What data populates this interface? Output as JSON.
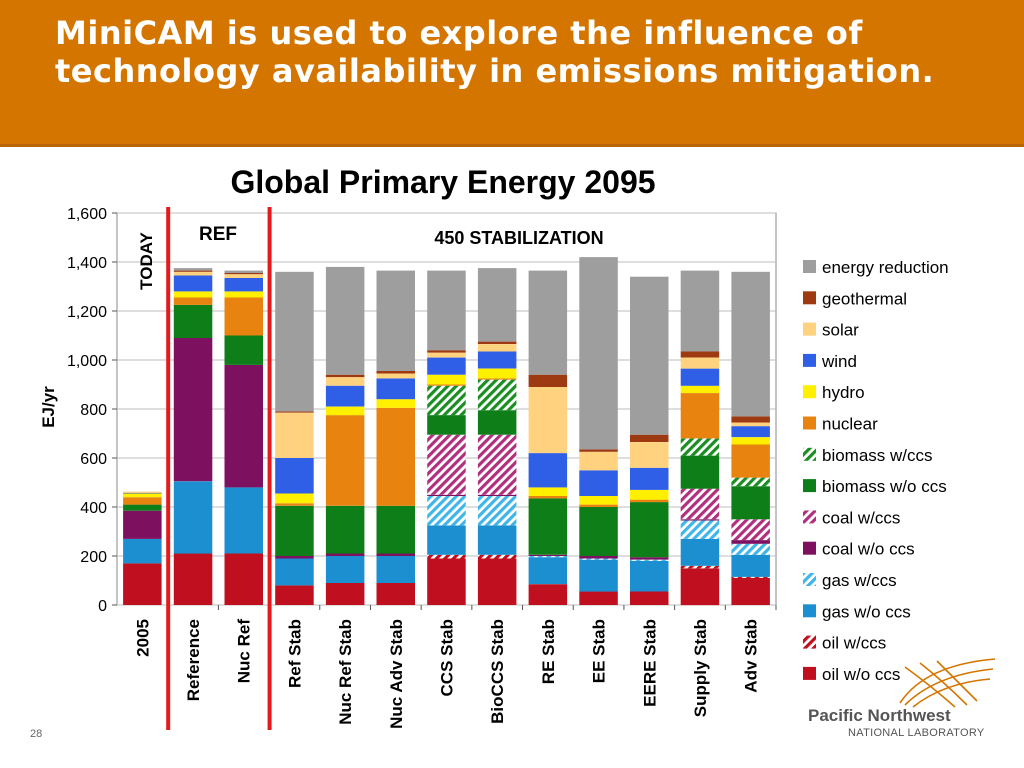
{
  "slide": {
    "title": "MiniCAM is used to explore the influence of technology availability in emissions mitigation.",
    "page_number": "28"
  },
  "logo": {
    "line1": "Pacific Northwest",
    "line2": "NATIONAL LABORATORY"
  },
  "colors": {
    "header_bg": "#D47500",
    "divider": "#E41A1C"
  },
  "chart_data": {
    "type": "bar",
    "stacked": true,
    "title": "Global Primary Energy 2095",
    "ylabel": "EJ/yr",
    "ylim": [
      0,
      1600
    ],
    "yticks": [
      0,
      200,
      400,
      600,
      800,
      1000,
      1200,
      1400,
      1600
    ],
    "ytick_labels": [
      "0",
      "200",
      "400",
      "600",
      "800",
      "1,000",
      "1,200",
      "1,400",
      "1,600"
    ],
    "grid": true,
    "legend_position": "right",
    "annotations": {
      "today": "TODAY",
      "ref": "REF",
      "stab": "450 STABILIZATION"
    },
    "categories": [
      "2005",
      "Reference",
      "Nuc Ref",
      "Ref Stab",
      "Nuc Ref Stab",
      "Nuc Adv Stab",
      "CCS Stab",
      "BioCCS Stab",
      "RE Stab",
      "EE Stab",
      "EERE Stab",
      "Supply Stab",
      "Adv Stab"
    ],
    "series": [
      {
        "name": "oil w/o ccs",
        "color": "#C0101F",
        "pattern": "solid",
        "values": [
          170,
          210,
          210,
          80,
          90,
          90,
          190,
          190,
          85,
          55,
          55,
          150,
          110
        ]
      },
      {
        "name": "oil w/ccs",
        "color": "#C0101F",
        "pattern": "hatch",
        "values": [
          0,
          0,
          0,
          0,
          0,
          0,
          15,
          15,
          0,
          0,
          0,
          10,
          5
        ]
      },
      {
        "name": "gas w/o ccs",
        "color": "#1C8FD0",
        "pattern": "solid",
        "values": [
          100,
          295,
          270,
          110,
          110,
          110,
          120,
          120,
          110,
          130,
          125,
          110,
          90
        ]
      },
      {
        "name": "gas w/ccs",
        "color": "#3FB5E8",
        "pattern": "hatch",
        "values": [
          0,
          0,
          0,
          0,
          0,
          0,
          120,
          120,
          5,
          5,
          5,
          75,
          45
        ]
      },
      {
        "name": "coal w/o ccs",
        "color": "#7E1060",
        "pattern": "solid",
        "values": [
          115,
          585,
          500,
          10,
          10,
          10,
          5,
          5,
          5,
          10,
          10,
          5,
          15
        ]
      },
      {
        "name": "coal w/ccs",
        "color": "#B0307E",
        "pattern": "hatch",
        "values": [
          0,
          0,
          0,
          0,
          0,
          0,
          245,
          245,
          0,
          0,
          0,
          125,
          85
        ]
      },
      {
        "name": "biomass w/o ccs",
        "color": "#0E7E18",
        "pattern": "solid",
        "values": [
          25,
          135,
          120,
          205,
          195,
          195,
          80,
          100,
          230,
          200,
          225,
          135,
          135
        ]
      },
      {
        "name": "biomass w/ccs",
        "color": "#1A8E22",
        "pattern": "hatch",
        "values": [
          0,
          0,
          0,
          0,
          0,
          0,
          120,
          125,
          0,
          0,
          0,
          70,
          35
        ]
      },
      {
        "name": "nuclear",
        "color": "#E8830F",
        "pattern": "solid",
        "values": [
          30,
          30,
          155,
          10,
          370,
          400,
          5,
          5,
          10,
          10,
          10,
          185,
          135
        ]
      },
      {
        "name": "hydro",
        "color": "#FFF000",
        "pattern": "solid",
        "values": [
          15,
          25,
          25,
          40,
          35,
          35,
          40,
          40,
          35,
          35,
          40,
          30,
          30
        ]
      },
      {
        "name": "wind",
        "color": "#2F5FE6",
        "pattern": "solid",
        "values": [
          3,
          65,
          55,
          145,
          85,
          85,
          70,
          70,
          140,
          105,
          90,
          70,
          45
        ]
      },
      {
        "name": "solar",
        "color": "#FFD27F",
        "pattern": "solid",
        "values": [
          5,
          15,
          15,
          185,
          35,
          20,
          20,
          30,
          270,
          75,
          105,
          45,
          15
        ]
      },
      {
        "name": "geothermal",
        "color": "#9E3A12",
        "pattern": "solid",
        "values": [
          0,
          5,
          5,
          5,
          10,
          10,
          10,
          10,
          50,
          10,
          30,
          25,
          25
        ]
      },
      {
        "name": "energy reduction",
        "color": "#9E9E9E",
        "pattern": "solid",
        "values": [
          0,
          10,
          10,
          570,
          440,
          410,
          325,
          300,
          425,
          785,
          645,
          330,
          590
        ]
      }
    ]
  }
}
